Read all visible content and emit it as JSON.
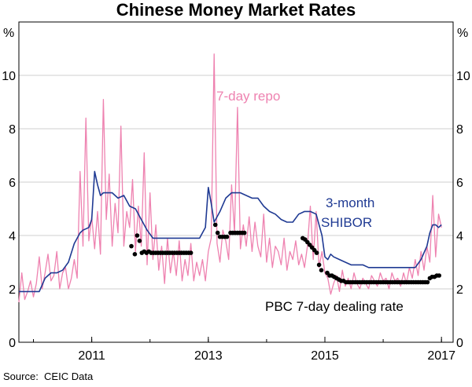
{
  "chart_data": {
    "type": "line",
    "title": "Chinese Money Market Rates",
    "y_unit_left": "%",
    "y_unit_right": "%",
    "ylim": [
      0,
      12
    ],
    "yticks": [
      0,
      2,
      4,
      6,
      8,
      10
    ],
    "xlim": [
      2009.75,
      2017.2
    ],
    "xticks": [
      {
        "value": 2011,
        "label": "2011"
      },
      {
        "value": 2013,
        "label": "2013"
      },
      {
        "value": 2015,
        "label": "2015"
      },
      {
        "value": 2017,
        "label": "2017"
      }
    ],
    "grid": "horizontal",
    "annotations": {
      "repo": "7-day repo",
      "shibor_line1": "3-month",
      "shibor_line2": "SHIBOR",
      "pbc": "PBC 7-day dealing rate"
    },
    "colors": {
      "repo": "#ee82b0",
      "shibor": "#1f3a93",
      "pbc": "#000000",
      "grid": "#cfcfcf"
    },
    "series": [
      {
        "key": "repo",
        "style": "line",
        "x": [
          2009.75,
          2009.8,
          2009.85,
          2009.9,
          2009.95,
          2010.0,
          2010.05,
          2010.1,
          2010.15,
          2010.2,
          2010.25,
          2010.3,
          2010.35,
          2010.4,
          2010.45,
          2010.5,
          2010.55,
          2010.6,
          2010.65,
          2010.7,
          2010.75,
          2010.8,
          2010.85,
          2010.9,
          2010.95,
          2011.0,
          2011.05,
          2011.1,
          2011.15,
          2011.2,
          2011.25,
          2011.3,
          2011.35,
          2011.4,
          2011.45,
          2011.5,
          2011.55,
          2011.6,
          2011.65,
          2011.7,
          2011.75,
          2011.8,
          2011.85,
          2011.9,
          2011.95,
          2012.0,
          2012.05,
          2012.1,
          2012.15,
          2012.2,
          2012.25,
          2012.3,
          2012.35,
          2012.4,
          2012.45,
          2012.5,
          2012.55,
          2012.6,
          2012.65,
          2012.7,
          2012.75,
          2012.8,
          2012.85,
          2012.9,
          2012.95,
          2013.0,
          2013.05,
          2013.1,
          2013.15,
          2013.2,
          2013.25,
          2013.3,
          2013.35,
          2013.4,
          2013.45,
          2013.5,
          2013.55,
          2013.6,
          2013.65,
          2013.7,
          2013.75,
          2013.8,
          2013.85,
          2013.9,
          2013.95,
          2014.0,
          2014.05,
          2014.1,
          2014.15,
          2014.2,
          2014.25,
          2014.3,
          2014.35,
          2014.4,
          2014.45,
          2014.5,
          2014.55,
          2014.6,
          2014.65,
          2014.7,
          2014.75,
          2014.8,
          2014.85,
          2014.9,
          2014.95,
          2015.0,
          2015.05,
          2015.1,
          2015.15,
          2015.2,
          2015.25,
          2015.3,
          2015.35,
          2015.4,
          2015.45,
          2015.5,
          2015.55,
          2015.6,
          2015.65,
          2015.7,
          2015.75,
          2015.8,
          2015.85,
          2015.9,
          2015.95,
          2016.0,
          2016.05,
          2016.1,
          2016.15,
          2016.2,
          2016.25,
          2016.3,
          2016.35,
          2016.4,
          2016.45,
          2016.5,
          2016.55,
          2016.6,
          2016.65,
          2016.7,
          2016.75,
          2016.8,
          2016.85,
          2016.9,
          2016.95,
          2017.0
        ],
        "values": [
          1.5,
          2.6,
          1.6,
          1.9,
          2.3,
          1.7,
          2.2,
          3.2,
          2.0,
          2.6,
          3.3,
          2.3,
          2.5,
          3.4,
          2.0,
          2.6,
          2.8,
          2.0,
          2.4,
          3.1,
          2.4,
          6.4,
          3.6,
          8.4,
          3.8,
          4.7,
          3.5,
          4.9,
          3.3,
          9.1,
          4.6,
          6.3,
          3.6,
          5.2,
          4.1,
          8.1,
          3.6,
          4.9,
          4.3,
          6.1,
          3.4,
          5.1,
          3.6,
          7.1,
          2.9,
          5.6,
          3.1,
          4.4,
          2.7,
          3.6,
          2.2,
          3.9,
          2.6,
          3.4,
          2.5,
          3.8,
          2.3,
          3.1,
          2.5,
          3.7,
          2.3,
          3.0,
          2.5,
          3.1,
          2.3,
          3.4,
          3.9,
          10.8,
          3.7,
          3.0,
          4.2,
          3.8,
          3.1,
          5.9,
          4.1,
          8.8,
          3.5,
          4.4,
          3.6,
          4.7,
          3.4,
          4.5,
          3.6,
          3.2,
          4.8,
          3.0,
          3.9,
          2.8,
          3.6,
          3.4,
          2.9,
          3.9,
          2.7,
          3.4,
          3.1,
          3.8,
          2.9,
          3.3,
          2.8,
          3.6,
          5.1,
          3.1,
          4.9,
          2.8,
          3.4,
          2.6,
          2.4,
          1.8,
          2.2,
          2.5,
          1.9,
          2.7,
          2.1,
          2.4,
          2.0,
          2.6,
          2.2,
          2.0,
          2.4,
          2.2,
          2.0,
          2.5,
          2.3,
          2.1,
          2.6,
          2.3,
          2.4,
          2.0,
          2.6,
          2.3,
          2.4,
          2.1,
          2.6,
          2.2,
          2.8,
          2.4,
          3.1,
          2.5,
          3.4,
          2.7,
          3.6,
          3.0,
          5.5,
          3.2,
          4.8,
          4.3
        ]
      },
      {
        "key": "shibor",
        "style": "line",
        "x": [
          2009.75,
          2009.95,
          2010.1,
          2010.2,
          2010.3,
          2010.4,
          2010.5,
          2010.6,
          2010.7,
          2010.8,
          2010.85,
          2010.95,
          2011.0,
          2011.05,
          2011.1,
          2011.15,
          2011.2,
          2011.25,
          2011.35,
          2011.45,
          2011.55,
          2011.65,
          2011.75,
          2011.85,
          2011.95,
          2012.05,
          2012.15,
          2012.25,
          2012.35,
          2012.45,
          2012.55,
          2012.65,
          2012.75,
          2012.85,
          2012.95,
          2013.0,
          2013.05,
          2013.1,
          2013.15,
          2013.2,
          2013.3,
          2013.4,
          2013.45,
          2013.5,
          2013.55,
          2013.65,
          2013.75,
          2013.85,
          2013.95,
          2014.05,
          2014.15,
          2014.25,
          2014.35,
          2014.45,
          2014.55,
          2014.65,
          2014.75,
          2014.85,
          2014.95,
          2015.0,
          2015.05,
          2015.1,
          2015.15,
          2015.25,
          2015.35,
          2015.45,
          2015.55,
          2015.65,
          2015.75,
          2015.85,
          2015.95,
          2016.05,
          2016.15,
          2016.25,
          2016.35,
          2016.45,
          2016.55,
          2016.65,
          2016.75,
          2016.8,
          2016.85,
          2016.9,
          2016.95,
          2017.0
        ],
        "values": [
          1.9,
          1.9,
          1.9,
          2.4,
          2.6,
          2.6,
          2.7,
          3.0,
          3.7,
          4.1,
          4.2,
          4.3,
          4.6,
          6.4,
          5.9,
          5.5,
          5.6,
          5.6,
          5.6,
          5.4,
          5.5,
          5.1,
          5.0,
          4.6,
          4.2,
          3.9,
          3.9,
          3.9,
          3.9,
          3.9,
          3.9,
          3.9,
          3.9,
          3.9,
          4.3,
          5.8,
          5.2,
          4.5,
          4.7,
          4.9,
          5.4,
          5.6,
          5.6,
          5.6,
          5.6,
          5.5,
          5.4,
          5.4,
          5.1,
          4.9,
          4.8,
          4.6,
          4.5,
          4.5,
          4.8,
          4.9,
          4.9,
          4.8,
          4.0,
          3.2,
          3.1,
          3.3,
          3.2,
          3.1,
          3.0,
          2.9,
          2.9,
          2.9,
          2.8,
          2.8,
          2.8,
          2.8,
          2.8,
          2.8,
          2.8,
          2.8,
          2.8,
          3.1,
          3.6,
          4.1,
          4.4,
          4.4,
          4.3,
          4.4
        ]
      },
      {
        "key": "pbc",
        "style": "dots",
        "x": [
          2011.68,
          2011.74,
          2011.78,
          2011.82,
          2011.86,
          2011.9,
          2011.94,
          2011.98,
          2012.02,
          2012.06,
          2012.1,
          2012.14,
          2012.18,
          2012.22,
          2012.26,
          2012.3,
          2012.34,
          2012.38,
          2012.42,
          2012.46,
          2012.5,
          2012.54,
          2012.58,
          2012.62,
          2012.66,
          2012.7,
          2013.12,
          2013.16,
          2013.2,
          2013.24,
          2013.28,
          2013.32,
          2013.38,
          2013.42,
          2013.46,
          2013.5,
          2013.54,
          2013.58,
          2013.62,
          2014.62,
          2014.66,
          2014.7,
          2014.74,
          2014.78,
          2014.82,
          2014.86,
          2014.9,
          2014.94,
          2015.04,
          2015.08,
          2015.12,
          2015.16,
          2015.2,
          2015.24,
          2015.28,
          2015.32,
          2015.36,
          2015.4,
          2015.44,
          2015.48,
          2015.52,
          2015.56,
          2015.6,
          2015.64,
          2015.68,
          2015.72,
          2015.76,
          2015.8,
          2015.84,
          2015.88,
          2015.92,
          2015.96,
          2016.0,
          2016.04,
          2016.08,
          2016.12,
          2016.16,
          2016.2,
          2016.24,
          2016.28,
          2016.32,
          2016.36,
          2016.4,
          2016.44,
          2016.48,
          2016.52,
          2016.56,
          2016.6,
          2016.64,
          2016.68,
          2016.72,
          2016.76,
          2016.8,
          2016.84,
          2016.88,
          2016.92,
          2016.96
        ],
        "values": [
          3.6,
          3.3,
          4.0,
          3.8,
          3.35,
          3.4,
          3.35,
          3.4,
          3.35,
          3.35,
          3.35,
          3.35,
          3.35,
          3.35,
          3.35,
          3.35,
          3.35,
          3.35,
          3.35,
          3.35,
          3.35,
          3.35,
          3.35,
          3.35,
          3.35,
          3.35,
          4.4,
          4.1,
          3.95,
          3.95,
          3.95,
          3.95,
          4.1,
          4.1,
          4.1,
          4.1,
          4.1,
          4.1,
          4.1,
          3.9,
          3.85,
          3.75,
          3.65,
          3.55,
          3.45,
          3.35,
          2.9,
          2.7,
          2.6,
          2.5,
          2.5,
          2.45,
          2.4,
          2.35,
          2.3,
          2.3,
          2.25,
          2.25,
          2.25,
          2.25,
          2.25,
          2.25,
          2.25,
          2.25,
          2.25,
          2.25,
          2.25,
          2.25,
          2.25,
          2.25,
          2.25,
          2.25,
          2.25,
          2.25,
          2.25,
          2.25,
          2.25,
          2.25,
          2.25,
          2.25,
          2.25,
          2.25,
          2.25,
          2.25,
          2.25,
          2.25,
          2.25,
          2.25,
          2.25,
          2.25,
          2.25,
          2.25,
          2.4,
          2.45,
          2.45,
          2.5,
          2.5
        ]
      }
    ]
  },
  "footer": {
    "source_label": "Source:",
    "source_value": "CEIC Data"
  }
}
